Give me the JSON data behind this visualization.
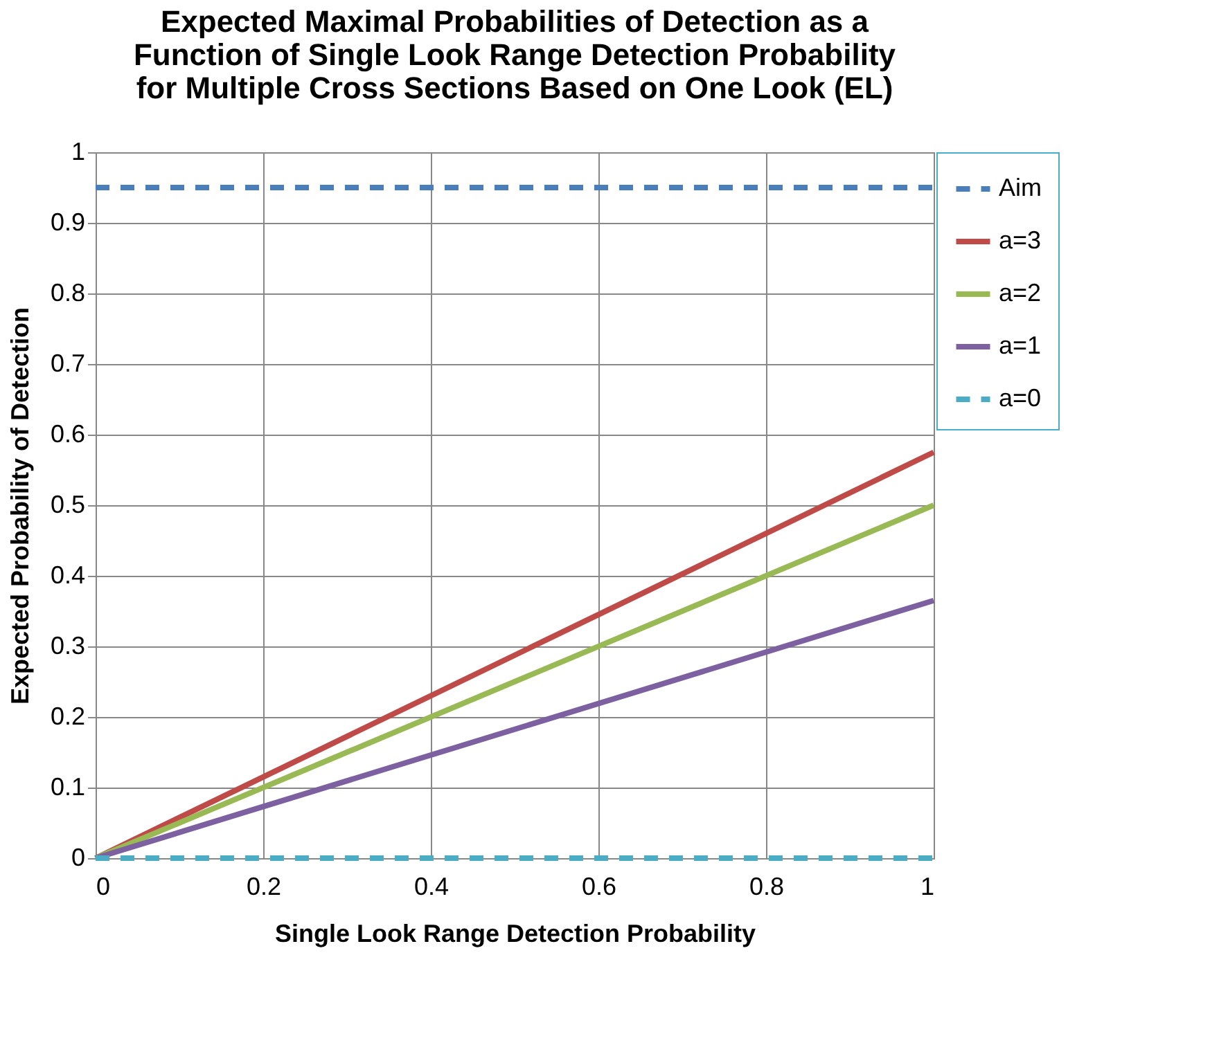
{
  "chart_data": {
    "type": "line",
    "title": [
      "Expected Maximal Probabilities of Detection as a",
      "Function of Single Look Range Detection Probability",
      "for Multiple Cross Sections Based on One Look (EL)"
    ],
    "xlabel": "Single Look Range Detection Probability",
    "ylabel": "Expected Probability of Detection",
    "x": [
      0,
      1
    ],
    "series": [
      {
        "name": "Aim",
        "color": "#4a7ebb",
        "values": [
          0.95,
          0.95
        ],
        "line_style": "dashed"
      },
      {
        "name": "a=3",
        "color": "#be4b48",
        "values": [
          0,
          0.575
        ],
        "line_style": "solid"
      },
      {
        "name": "a=2",
        "color": "#98b954",
        "values": [
          0,
          0.5
        ],
        "line_style": "solid"
      },
      {
        "name": "a=1",
        "color": "#7d60a0",
        "values": [
          0,
          0.365
        ],
        "line_style": "solid"
      },
      {
        "name": "a=0",
        "color": "#4bacc6",
        "values": [
          0,
          0
        ],
        "line_style": "dashed"
      }
    ],
    "xlim": [
      0,
      1
    ],
    "xticks": [
      0,
      0.2,
      0.4,
      0.6,
      0.8,
      1
    ],
    "ylim": [
      0,
      1
    ],
    "yticks": [
      0,
      0.1,
      0.2,
      0.3,
      0.4,
      0.5,
      0.6,
      0.7,
      0.8,
      0.9,
      1
    ],
    "grid": true,
    "legend": "right",
    "marker": "none"
  }
}
